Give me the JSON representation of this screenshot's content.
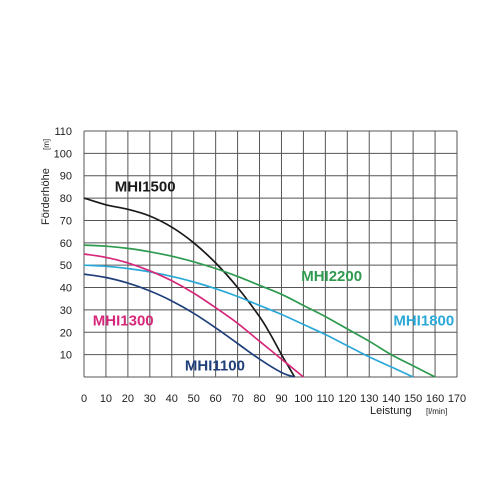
{
  "chart_data": {
    "type": "line",
    "xlabel": "Leistung",
    "xunit": "[l/min]",
    "ylabel": "Förderhöhe",
    "yunit": "[m]",
    "xlim": [
      0,
      170
    ],
    "ylim": [
      0,
      110
    ],
    "x_ticks": [
      "0",
      "10",
      "20",
      "30",
      "40",
      "50",
      "60",
      "70",
      "80",
      "90",
      "100",
      "110",
      "120",
      "130",
      "140",
      "150",
      "160",
      "170"
    ],
    "y_ticks": [
      "10",
      "20",
      "30",
      "40",
      "50",
      "60",
      "70",
      "80",
      "90",
      "100",
      "110"
    ],
    "grid": true,
    "series": [
      {
        "name": "MHI1500",
        "color": "#1a1a1a",
        "x": [
          0,
          10,
          20,
          30,
          40,
          50,
          60,
          70,
          80,
          85,
          90,
          93,
          96
        ],
        "y": [
          80,
          77,
          75,
          72,
          67,
          60,
          51,
          40,
          27,
          19,
          10,
          5,
          0
        ]
      },
      {
        "name": "MHI2200",
        "color": "#2e9a4f",
        "x": [
          0,
          10,
          20,
          30,
          40,
          50,
          60,
          70,
          80,
          90,
          100,
          110,
          120,
          130,
          140,
          150,
          160
        ],
        "y": [
          59,
          58.5,
          57.5,
          56,
          54,
          51.5,
          48.5,
          45,
          41,
          37,
          32,
          27,
          21.5,
          16,
          10,
          5,
          0
        ]
      },
      {
        "name": "MHI1800",
        "color": "#2aa8d8",
        "x": [
          0,
          10,
          20,
          30,
          40,
          50,
          60,
          70,
          80,
          90,
          100,
          110,
          120,
          130,
          140,
          150
        ],
        "y": [
          50,
          49.5,
          48.5,
          47,
          45,
          42.5,
          39.5,
          36,
          32,
          28,
          23.5,
          19,
          14,
          9,
          4.5,
          0
        ]
      },
      {
        "name": "MHI1300",
        "color": "#d6287a",
        "x": [
          0,
          10,
          20,
          30,
          40,
          50,
          60,
          70,
          80,
          90,
          100
        ],
        "y": [
          55,
          53.5,
          51,
          47.5,
          43,
          37.5,
          31,
          24,
          16,
          8,
          0
        ]
      },
      {
        "name": "MHI1100",
        "color": "#1f3f7a",
        "x": [
          0,
          10,
          20,
          30,
          40,
          50,
          60,
          70,
          80,
          90,
          96
        ],
        "y": [
          46,
          44.5,
          42,
          38.5,
          34,
          28.5,
          22,
          15,
          8,
          2,
          0
        ]
      }
    ]
  }
}
